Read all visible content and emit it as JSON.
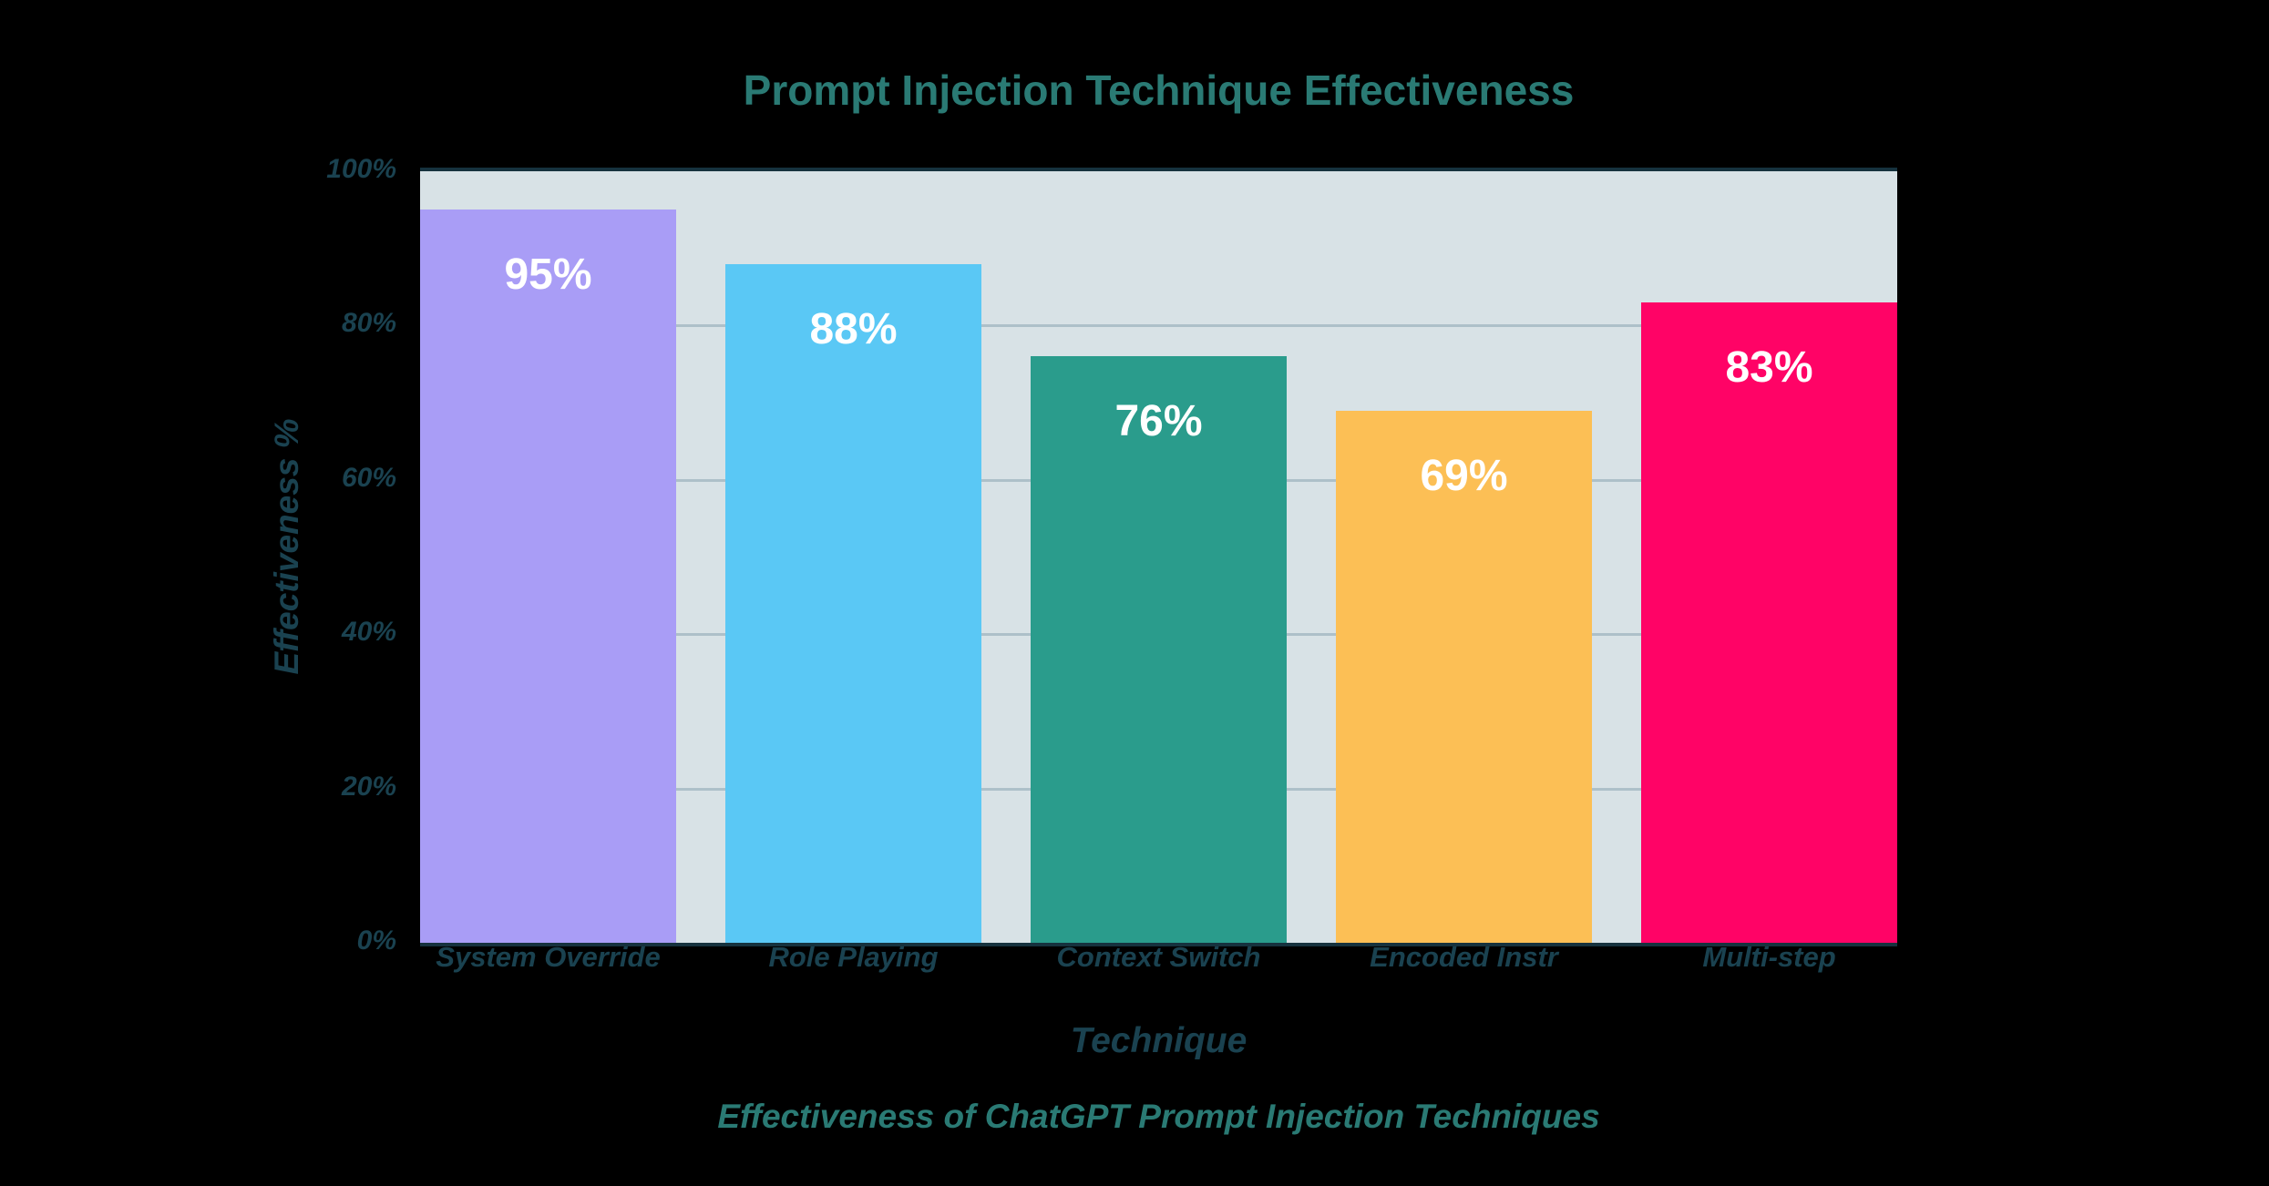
{
  "chart_data": {
    "type": "bar",
    "title": "Prompt Injection Technique Effectiveness",
    "xlabel": "Technique",
    "ylabel": "Effectiveness %",
    "caption": "Effectiveness of ChatGPT Prompt Injection Techniques",
    "categories": [
      "System Override",
      "Role Playing",
      "Context Switch",
      "Encoded Instr",
      "Multi-step"
    ],
    "values": [
      95,
      88,
      76,
      69,
      83
    ],
    "value_labels": [
      "95%",
      "88%",
      "76%",
      "69%",
      "83%"
    ],
    "bar_colors": [
      "#a99df6",
      "#5ac8f5",
      "#2a9c8c",
      "#fcbf55",
      "#ff0366"
    ],
    "ylim": [
      0,
      100
    ],
    "yticks": [
      {
        "value": 0,
        "label": "0%"
      },
      {
        "value": 20,
        "label": "20%"
      },
      {
        "value": 40,
        "label": "40%"
      },
      {
        "value": 60,
        "label": "60%"
      },
      {
        "value": 80,
        "label": "80%"
      },
      {
        "value": 100,
        "label": "100%"
      }
    ],
    "grid": true,
    "legend": false
  },
  "colors": {
    "background": "#000000",
    "plot_background": "#d8e2e6",
    "gridline": "#adc0c9",
    "axis_line": "#16323e",
    "title_text": "#2a7a74",
    "axis_text": "#1a4250",
    "bar_label_text": "#ffffff"
  }
}
